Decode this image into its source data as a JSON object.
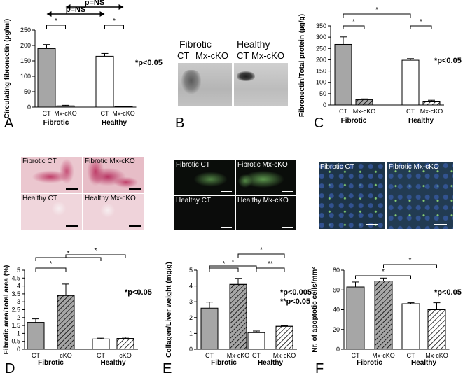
{
  "panel_letters": [
    "A",
    "B",
    "C",
    "D",
    "E",
    "F"
  ],
  "charts": {
    "A": {
      "type": "bar",
      "ylabel": "Circulating fibronectin (µg/ml)",
      "ylim": [
        0,
        250
      ],
      "yticks": [
        0,
        50,
        100,
        150,
        200,
        250
      ],
      "categories": [
        "CT",
        "Mx-cKO",
        "CT",
        "Mx-cKO"
      ],
      "groups": [
        "Fibrotic",
        "Healthy"
      ],
      "values": [
        190,
        4,
        165,
        2
      ],
      "errors": [
        13,
        2,
        9,
        1
      ],
      "fills": [
        "#a6a6a6",
        "#808080",
        "#ffffff",
        "#ffffff"
      ],
      "hatch": [
        false,
        false,
        false,
        false
      ],
      "brackets": [
        {
          "from": 0,
          "to": 1,
          "label": "*"
        },
        {
          "from": 2,
          "to": 3,
          "label": "*"
        }
      ],
      "arrows": [
        {
          "from": 0,
          "to": 2,
          "label": "p=NS"
        },
        {
          "from": 1,
          "to": 3,
          "label": "p=NS"
        }
      ],
      "annotation": "*p<0.05"
    },
    "C": {
      "type": "bar",
      "ylabel": "Fibronectin/Total protein (µg/g)",
      "ylim": [
        0,
        350
      ],
      "yticks": [
        0,
        50,
        100,
        150,
        200,
        250,
        300,
        350
      ],
      "categories": [
        "CT",
        "Mx-cKO",
        "CT",
        "Mx-cKO"
      ],
      "groups": [
        "Fibrotic",
        "Healthy"
      ],
      "values": [
        268,
        24,
        198,
        17
      ],
      "errors": [
        33,
        3,
        7,
        4
      ],
      "fills": [
        "#a6a6a6",
        "#a6a6a6",
        "#ffffff",
        "#ffffff"
      ],
      "hatch": [
        false,
        true,
        false,
        true
      ],
      "brackets": [
        {
          "from": 0,
          "to": 1,
          "label": "*"
        },
        {
          "from": 2,
          "to": 3,
          "label": "*"
        },
        {
          "from": 0,
          "to": 2,
          "label": "*"
        }
      ],
      "annotation": "*p<0.05"
    },
    "D": {
      "type": "bar",
      "ylabel": "Fibrotic area/Total area (%)",
      "ylim": [
        0,
        5
      ],
      "yticks": [
        0,
        0.5,
        1,
        1.5,
        2,
        2.5,
        3,
        3.5,
        4,
        4.5,
        5
      ],
      "categories": [
        "CT",
        "cKO",
        "CT",
        "cKO"
      ],
      "groups": [
        "Fibrotic",
        "Healthy"
      ],
      "values": [
        1.7,
        3.4,
        0.65,
        0.68
      ],
      "errors": [
        0.22,
        0.72,
        0.05,
        0.08
      ],
      "fills": [
        "#a6a6a6",
        "#a6a6a6",
        "#ffffff",
        "#ffffff"
      ],
      "hatch": [
        false,
        true,
        false,
        true
      ],
      "brackets": [
        {
          "from": 0,
          "to": 1,
          "label": "*"
        },
        {
          "from": 0,
          "to": 2,
          "label": "*"
        },
        {
          "from": 1,
          "to": 3,
          "label": "*"
        }
      ],
      "annotation": "*p<0.05"
    },
    "E": {
      "type": "bar",
      "ylabel": "Collagen/Liver weight (mg/g)",
      "ylim": [
        0,
        5
      ],
      "yticks": [
        0,
        1,
        2,
        3,
        4,
        5
      ],
      "categories": [
        "CT",
        "Mx-cKO",
        "CT",
        "Mx-cKO"
      ],
      "groups": [
        "Fibrotic",
        "Healthy"
      ],
      "values": [
        2.6,
        4.1,
        1.05,
        1.45
      ],
      "errors": [
        0.38,
        0.38,
        0.1,
        0.04
      ],
      "fills": [
        "#a6a6a6",
        "#a6a6a6",
        "#ffffff",
        "#ffffff"
      ],
      "hatch": [
        false,
        true,
        false,
        true
      ],
      "brackets": [
        {
          "from": 0,
          "to": 1,
          "label": "*"
        },
        {
          "from": 0,
          "to": 2,
          "label": "*"
        },
        {
          "from": 1,
          "to": 3,
          "label": "*"
        },
        {
          "from": 2,
          "to": 3,
          "label": "**"
        }
      ],
      "annotation": "*p<0.005",
      "annotation2": "**p<0.05"
    },
    "F": {
      "type": "bar",
      "ylabel": "Nr. of apoptotic cells/mm²",
      "ylim": [
        0,
        80
      ],
      "yticks": [
        0,
        20,
        40,
        60,
        80
      ],
      "categories": [
        "CT",
        "Mx-cKO",
        "CT",
        "Mx-cKO"
      ],
      "groups": [
        "Fibrotic",
        "Healthy"
      ],
      "values": [
        63,
        69,
        46,
        40
      ],
      "errors": [
        5,
        3,
        1,
        7
      ],
      "fills": [
        "#a6a6a6",
        "#a6a6a6",
        "#ffffff",
        "#ffffff"
      ],
      "hatch": [
        false,
        true,
        false,
        true
      ],
      "brackets": [
        {
          "from": 0,
          "to": 2,
          "label": "*"
        },
        {
          "from": 1,
          "to": 3,
          "label": "*"
        }
      ],
      "annotation": "*p<0.05"
    }
  },
  "blot": {
    "left_group": "Fibrotic",
    "right_group": "Healthy",
    "lanes": [
      "CT",
      "Mx-cKO",
      "CT",
      "Mx-cKO"
    ]
  },
  "micrographs": {
    "sirius": [
      "Fibrotic CT",
      "Fibrotic Mx-cKO",
      "Healthy CT",
      "Healthy Mx-cKO"
    ],
    "collagen_if": [
      "Fibrotic CT",
      "Fibrotic Mx-cKO",
      "Healthy CT",
      "Healthy Mx-cKO"
    ],
    "tunel": [
      "Fibrotic CT",
      "Fibrotic Mx-cKO"
    ]
  },
  "colors": {
    "sirius_bg": "#ebc7cf",
    "sirius_stain": "#c0406a",
    "if_bg": "#0a0d0a",
    "if_signal": "#7fd06a",
    "tunel_bg": "#1d3448",
    "tunel_blue": "#3a5fb0"
  }
}
